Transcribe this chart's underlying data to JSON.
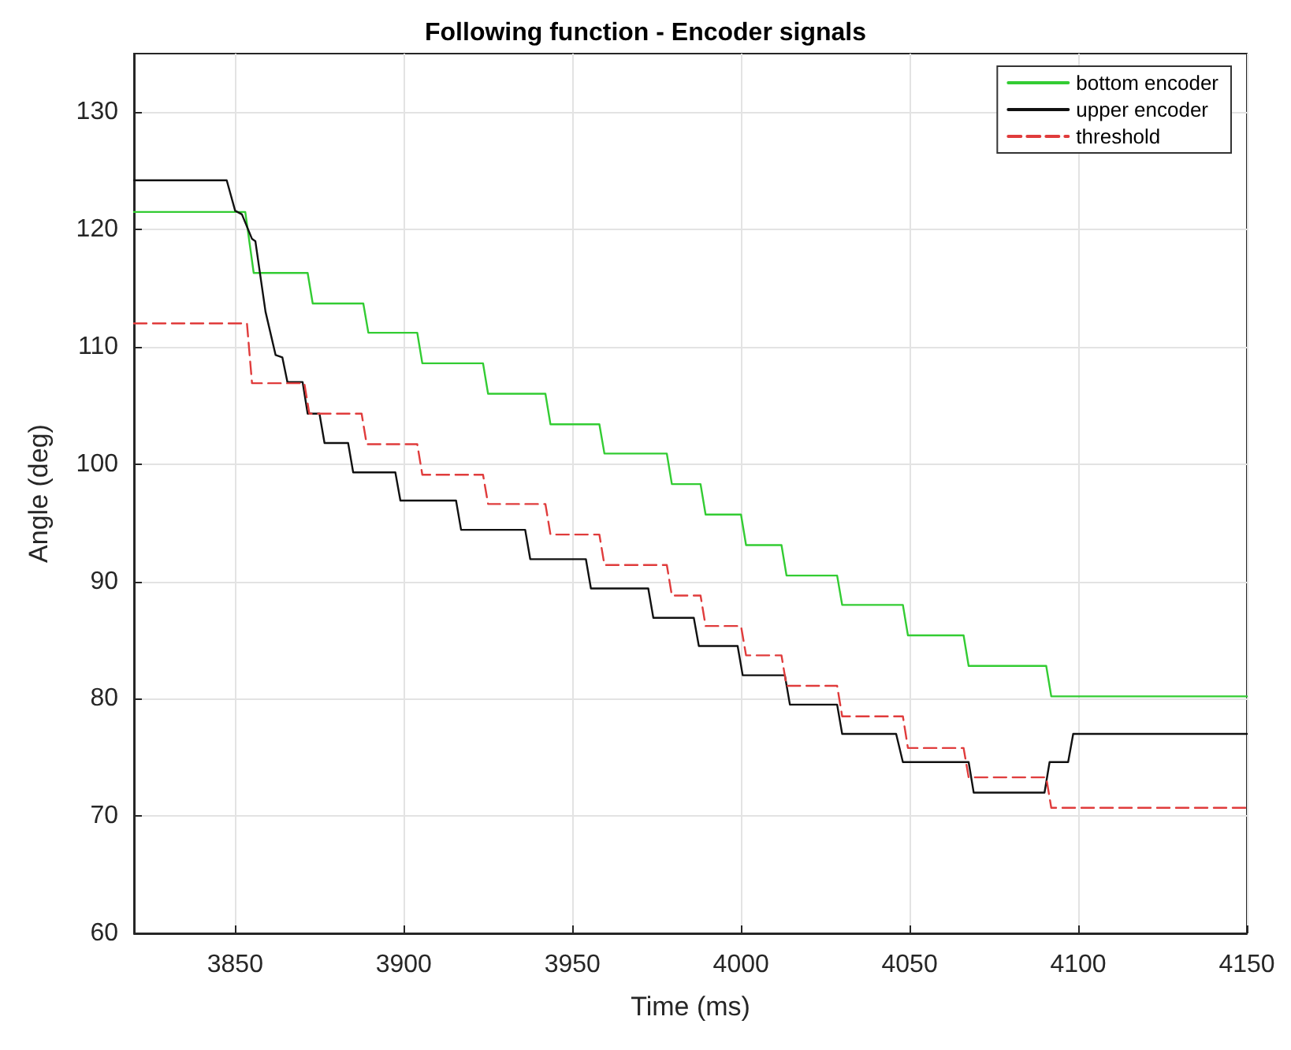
{
  "chart_data": {
    "type": "line",
    "title": "Following function - Encoder signals",
    "xlabel": "Time (ms)",
    "ylabel": "Angle (deg)",
    "xlim": [
      3820,
      4150
    ],
    "xticks": [
      3850,
      3900,
      3950,
      4000,
      4050,
      4100,
      4150
    ],
    "ylim": [
      60,
      135
    ],
    "yticks": [
      60,
      70,
      80,
      90,
      100,
      110,
      120,
      130
    ],
    "grid": true,
    "legend": "top right",
    "marker": "none",
    "series": [
      {
        "name": "bottom encoder",
        "color": "#33cc33",
        "line_style": "solid",
        "x": [
          3820,
          3853,
          3855.5,
          3871.5,
          3873,
          3888,
          3889.5,
          3904,
          3905.5,
          3923.5,
          3925,
          3942,
          3943.5,
          3958,
          3959.5,
          3978,
          3979.5,
          3988,
          3989.5,
          4000,
          4001.5,
          4012,
          4013.5,
          4028.5,
          4030,
          4048,
          4049.5,
          4066,
          4067.5,
          4090.5,
          4092,
          4150
        ],
        "values": [
          121.5,
          121.5,
          116.3,
          116.3,
          113.7,
          113.7,
          111.2,
          111.2,
          108.6,
          108.6,
          106.0,
          106.0,
          103.4,
          103.4,
          100.9,
          100.9,
          98.3,
          98.3,
          95.7,
          95.7,
          93.1,
          93.1,
          90.5,
          90.5,
          88.0,
          88.0,
          85.4,
          85.4,
          82.8,
          82.8,
          80.2,
          80.2
        ]
      },
      {
        "name": "upper encoder",
        "color": "#111111",
        "line_style": "solid",
        "x": [
          3820,
          3847.5,
          3850,
          3852,
          3855,
          3856,
          3859,
          3862,
          3864,
          3865.5,
          3870,
          3871.5,
          3875,
          3876.5,
          3883.5,
          3885,
          3897.5,
          3899,
          3915.5,
          3917,
          3936,
          3937.5,
          3954,
          3955.5,
          3972.5,
          3974,
          3986,
          3987.5,
          3999,
          4000.5,
          4013,
          4014.5,
          4028.5,
          4030,
          4046,
          4048,
          4067.5,
          4069,
          4090,
          4091.5,
          4097,
          4098.5,
          4150
        ],
        "values": [
          124.2,
          124.2,
          121.6,
          121.3,
          119.2,
          119.0,
          113.0,
          109.3,
          109.1,
          107.0,
          107.0,
          104.3,
          104.3,
          101.8,
          101.8,
          99.3,
          99.3,
          96.9,
          96.9,
          94.4,
          94.4,
          91.9,
          91.9,
          89.4,
          89.4,
          86.9,
          86.9,
          84.5,
          84.5,
          82.0,
          82.0,
          79.5,
          79.5,
          77.0,
          77.0,
          74.6,
          74.6,
          72.0,
          72.0,
          74.6,
          74.6,
          77.0,
          77.0
        ]
      },
      {
        "name": "threshold",
        "color": "#e03c3c",
        "line_style": "dashed",
        "x": [
          3820,
          3853.5,
          3855,
          3870.5,
          3872,
          3887.5,
          3889,
          3904,
          3905.5,
          3923.5,
          3925,
          3942,
          3943.5,
          3958,
          3959.5,
          3978,
          3979.5,
          3988,
          3989.5,
          4000,
          4001.5,
          4012,
          4013.5,
          4028.5,
          4030,
          4048,
          4049.5,
          4066,
          4067.5,
          4090.5,
          4092,
          4150
        ],
        "values": [
          112.0,
          112.0,
          106.9,
          106.9,
          104.3,
          104.3,
          101.7,
          101.7,
          99.1,
          99.1,
          96.6,
          96.6,
          94.0,
          94.0,
          91.4,
          91.4,
          88.8,
          88.8,
          86.2,
          86.2,
          83.7,
          83.7,
          81.1,
          81.1,
          78.5,
          78.5,
          75.8,
          75.8,
          73.3,
          73.3,
          70.7,
          70.7
        ]
      }
    ]
  }
}
